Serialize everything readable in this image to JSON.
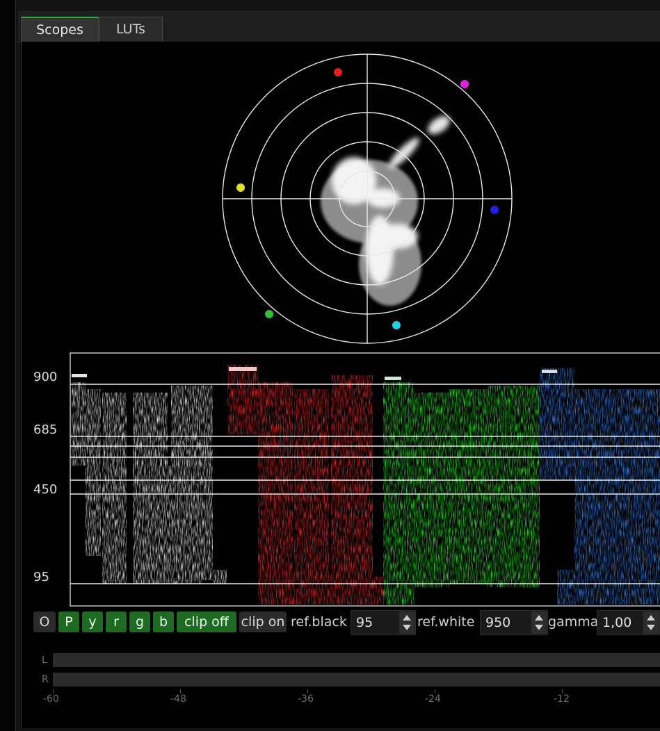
{
  "tabs": [
    {
      "label": "Scopes",
      "active": true
    },
    {
      "label": "LUTs",
      "active": false
    }
  ],
  "vectorscope": {
    "targets": [
      {
        "name": "red",
        "color": "#e02020"
      },
      {
        "name": "magenta",
        "color": "#e020e0"
      },
      {
        "name": "blue",
        "color": "#2020e0"
      },
      {
        "name": "cyan",
        "color": "#20d0e0"
      },
      {
        "name": "green",
        "color": "#30c030"
      },
      {
        "name": "yellow",
        "color": "#e0e020"
      }
    ]
  },
  "waveform": {
    "scale_labels": [
      "900",
      "685",
      "450",
      "95"
    ],
    "channels": [
      {
        "name": "luma",
        "color": "#ffffff"
      },
      {
        "name": "red",
        "color": "#ff3030"
      },
      {
        "name": "green",
        "color": "#30ff30"
      },
      {
        "name": "blue",
        "color": "#3a8cff"
      }
    ]
  },
  "controls": {
    "buttons": [
      {
        "label": "O",
        "on": false
      },
      {
        "label": "P",
        "on": true
      },
      {
        "label": "y",
        "on": true
      },
      {
        "label": "r",
        "on": true
      },
      {
        "label": "g",
        "on": true
      },
      {
        "label": "b",
        "on": true
      },
      {
        "label": "clip off",
        "on": true
      },
      {
        "label": "clip on",
        "on": false
      }
    ],
    "ref_black_label": "ref.black",
    "ref_black_value": "95",
    "ref_white_label": "ref.white",
    "ref_white_value": "950",
    "gamma_label": "gamma",
    "gamma_value": "1,00"
  },
  "audio_meter": {
    "channels": [
      "L",
      "R"
    ],
    "ticks": [
      "-60",
      "-48",
      "-36",
      "-24",
      "-12"
    ]
  },
  "colors": {
    "accent_green": "#2fa83a",
    "button_on": "#1f6a22"
  }
}
